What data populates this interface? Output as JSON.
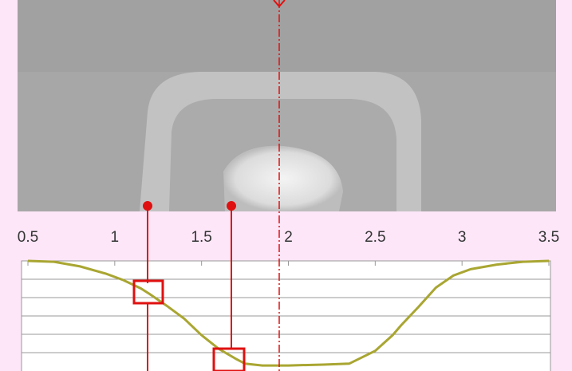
{
  "chart_data": {
    "type": "line",
    "x": [
      0.5,
      0.65,
      0.8,
      0.95,
      1.05,
      1.15,
      1.2,
      1.3,
      1.4,
      1.5,
      1.6,
      1.7,
      1.75,
      1.85,
      2.0,
      2.2,
      2.35,
      2.5,
      2.6,
      2.65,
      2.75,
      2.85,
      2.95,
      3.05,
      3.2,
      3.35,
      3.5
    ],
    "series": [
      {
        "color": "#a9a632",
        "values": [
          0,
          -0.05,
          -0.3,
          -0.7,
          -1.05,
          -1.5,
          -1.8,
          -2.45,
          -3.15,
          -4.05,
          -4.8,
          -5.35,
          -5.6,
          -5.7,
          -5.7,
          -5.65,
          -5.6,
          -4.9,
          -4.05,
          -3.5,
          -2.5,
          -1.45,
          -0.8,
          -0.45,
          -0.2,
          -0.05,
          0
        ]
      }
    ],
    "xlim": [
      0.5,
      3.5
    ],
    "xticks": [
      0.5,
      1,
      1.5,
      2,
      2.5,
      3,
      3.5
    ],
    "ylim": [
      -6,
      0
    ]
  }
}
